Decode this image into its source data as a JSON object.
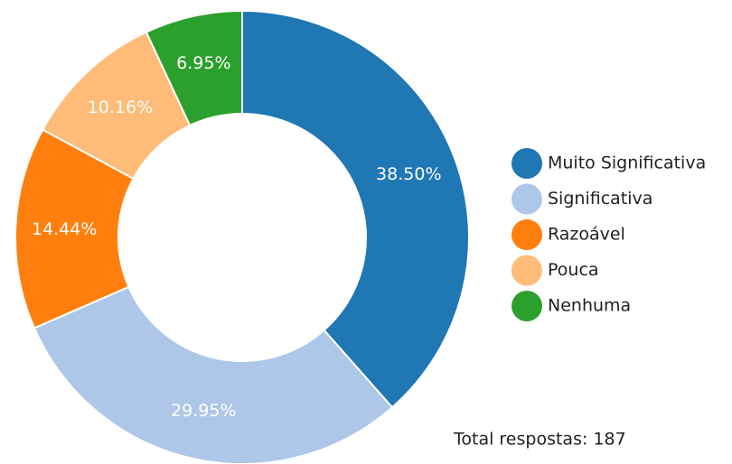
{
  "chart_data": {
    "type": "donut",
    "categories": [
      "Muito Significativa",
      "Significativa",
      "Razoável",
      "Pouca",
      "Nenhuma"
    ],
    "values": [
      38.5,
      29.95,
      14.44,
      10.16,
      6.95
    ],
    "value_labels": [
      "38.50%",
      "29.95%",
      "14.44%",
      "10.16%",
      "6.95%"
    ],
    "colors": [
      "#1f77b4",
      "#aec7e8",
      "#ff7f0e",
      "#ffbb78",
      "#2ca02c"
    ],
    "annotation": "Total respostas: 187"
  }
}
